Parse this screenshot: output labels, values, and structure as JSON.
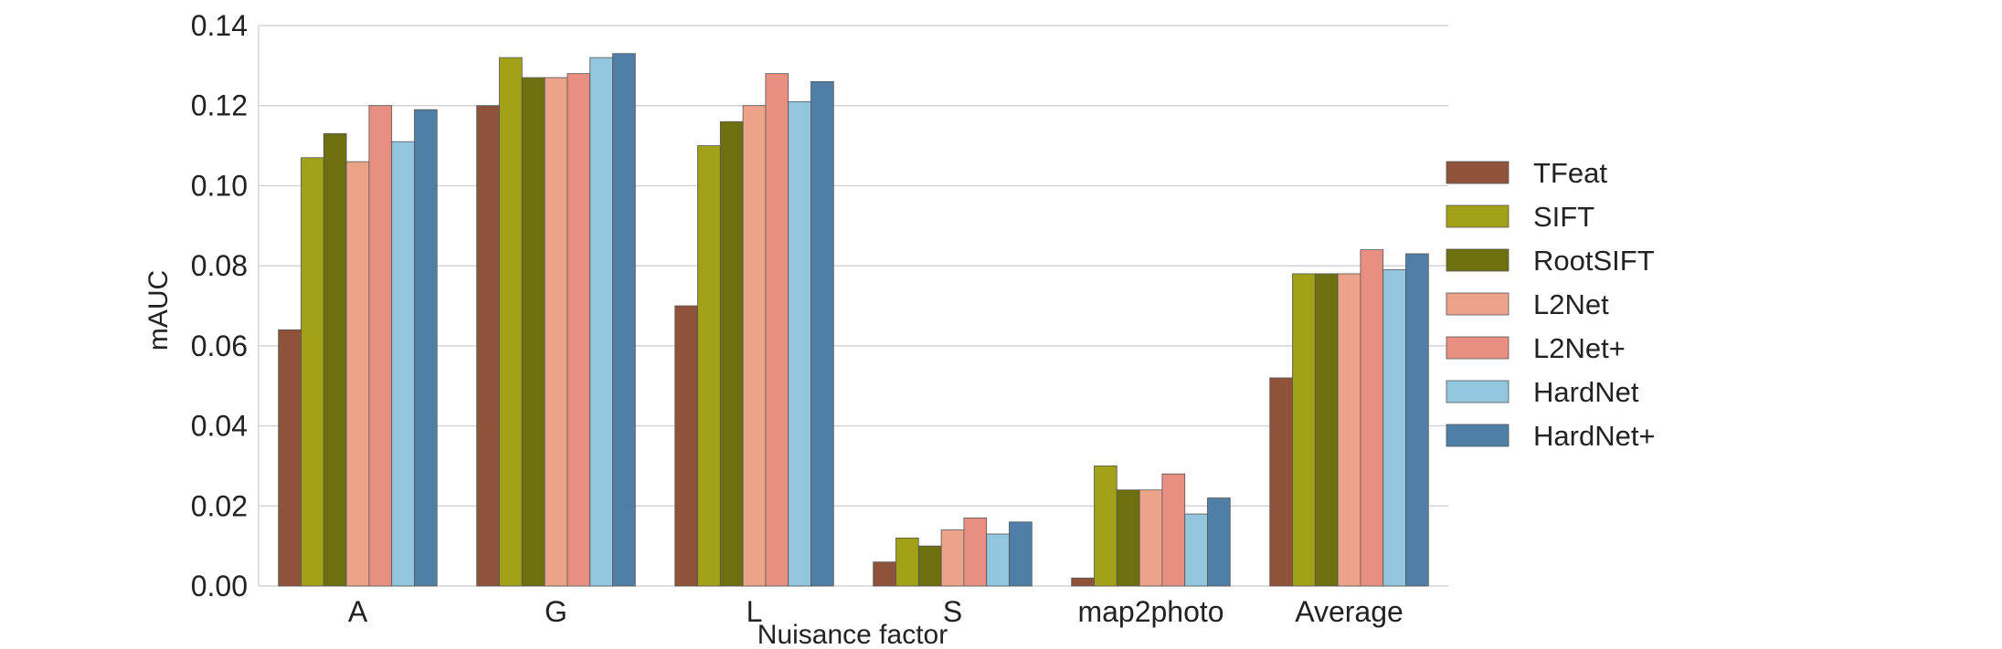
{
  "chart_data": {
    "type": "bar",
    "xlabel": "Nuisance factor",
    "ylabel": "mAUC",
    "ylim": [
      0,
      0.14
    ],
    "yticks": [
      "0.00",
      "0.02",
      "0.04",
      "0.06",
      "0.08",
      "0.10",
      "0.12",
      "0.14"
    ],
    "grid": true,
    "legend_position": "right",
    "categories": [
      "A",
      "G",
      "L",
      "S",
      "map2photo",
      "Average"
    ],
    "series": [
      {
        "name": "TFeat",
        "color": "#8e533a",
        "values": [
          0.064,
          0.12,
          0.07,
          0.006,
          0.002,
          0.052
        ]
      },
      {
        "name": "SIFT",
        "color": "#a1a017",
        "values": [
          0.107,
          0.132,
          0.11,
          0.012,
          0.03,
          0.078
        ]
      },
      {
        "name": "RootSIFT",
        "color": "#6e7010",
        "values": [
          0.113,
          0.127,
          0.116,
          0.01,
          0.024,
          0.078
        ]
      },
      {
        "name": "L2Net",
        "color": "#eba48a",
        "values": [
          0.106,
          0.127,
          0.12,
          0.014,
          0.024,
          0.078
        ]
      },
      {
        "name": "L2Net+",
        "color": "#e88f82",
        "values": [
          0.12,
          0.128,
          0.128,
          0.017,
          0.028,
          0.084
        ]
      },
      {
        "name": "HardNet",
        "color": "#92c6dc",
        "values": [
          0.111,
          0.132,
          0.121,
          0.013,
          0.018,
          0.079
        ]
      },
      {
        "name": "HardNet+",
        "color": "#4f7fa7",
        "values": [
          0.119,
          0.133,
          0.126,
          0.016,
          0.022,
          0.083
        ]
      }
    ]
  }
}
